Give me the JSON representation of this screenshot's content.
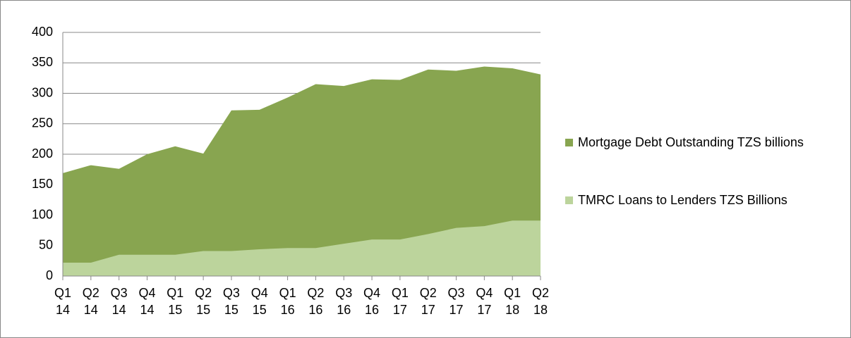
{
  "chart_data": {
    "type": "area",
    "categories": [
      "Q1 14",
      "Q2 14",
      "Q3 14",
      "Q4 14",
      "Q1 15",
      "Q2 15",
      "Q3 15",
      "Q4 15",
      "Q1 16",
      "Q2 16",
      "Q3 16",
      "Q4 16",
      "Q1 17",
      "Q2 17",
      "Q3 17",
      "Q4 17",
      "Q1 18",
      "Q2 18"
    ],
    "series": [
      {
        "name": "Mortgage Debt Outstanding TZS billions",
        "color": "#88a550",
        "values": [
          169,
          182,
          176,
          200,
          213,
          201,
          272,
          273,
          293,
          315,
          312,
          323,
          322,
          339,
          337,
          344,
          341,
          331
        ]
      },
      {
        "name": "TMRC Loans to Lenders TZS Billions",
        "color": "#bcd49c",
        "values": [
          22,
          22,
          35,
          35,
          35,
          41,
          41,
          44,
          46,
          46,
          53,
          60,
          60,
          69,
          79,
          82,
          91,
          91
        ]
      }
    ],
    "ylim": [
      0,
      400
    ],
    "yticks": [
      0,
      50,
      100,
      150,
      200,
      250,
      300,
      350,
      400
    ],
    "grid": true,
    "legend": "right"
  }
}
